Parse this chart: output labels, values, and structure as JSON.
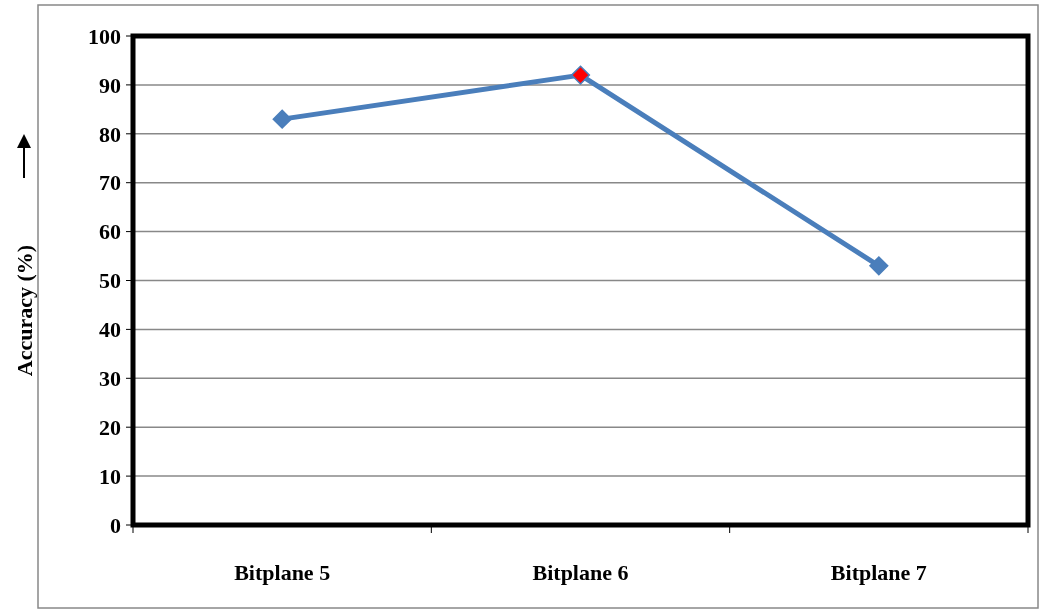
{
  "chart_data": {
    "type": "line",
    "ylabel": "Accuracy (%)",
    "categories": [
      "Bitplane 5",
      "Bitplane 6",
      "Bitplane 7"
    ],
    "series": [
      {
        "color": "#4a7ebb",
        "colors": [
          "#4a7ebb",
          "#ff0000",
          "#4a7ebb"
        ],
        "values": [
          83,
          92,
          53
        ]
      }
    ],
    "ylim": [
      0,
      100
    ],
    "yticks": [
      0,
      10,
      20,
      30,
      40,
      50,
      60,
      70,
      80,
      90,
      100
    ],
    "grid": "y",
    "marker": "diamond",
    "line_style": "solid"
  }
}
